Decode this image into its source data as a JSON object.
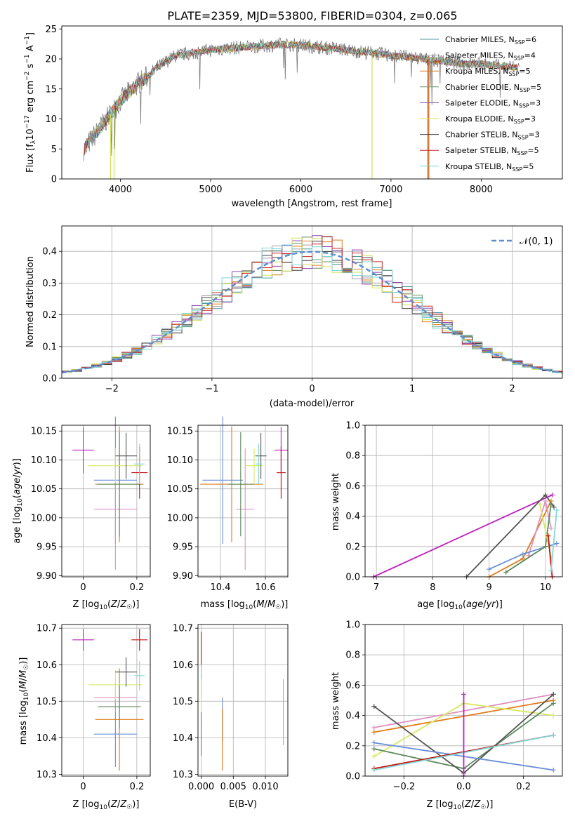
{
  "figure": {
    "title": "PLATE=2359, MJD=53800, FIBERID=0304, z=0.065",
    "model_names": [
      "Chabrier MILES",
      "Salpeter MILES",
      "Kroupa MILES",
      "Chabrier ELODIE",
      "Salpeter ELODIE",
      "Kroupa ELODIE",
      "Chabrier STELIB",
      "Salpeter STELIB",
      "Kroupa STELIB"
    ],
    "colors": [
      "#4e9a9a",
      "#a0a0a0",
      "#d47f1e",
      "#6b8e6b",
      "#8e44ad",
      "#d4e157",
      "#444444",
      "#c62828",
      "#7fd6d6"
    ],
    "error_colors": [
      "#6a8fd8",
      "#e090c0",
      "#e07b1a",
      "#5a8a5a",
      "#c020c0",
      "#d8e860",
      "#555555",
      "#c81010",
      "#80d8d8"
    ]
  },
  "chart_data": [
    {
      "type": "line",
      "id": "spectrum",
      "xlabel": "wavelength [Angstrom, rest frame]",
      "ylabel": "Flux [f_λ 10^-17 erg cm^-2 s^-1 A^-1]",
      "xlim": [
        3350,
        8900
      ],
      "ylim": [
        0,
        25.5
      ],
      "xticks": [
        4000,
        5000,
        6000,
        7000,
        8000
      ],
      "yticks": [
        0,
        5,
        10,
        15,
        20,
        25
      ],
      "legend_placement": "upper-right",
      "legend": [
        {
          "model": "Chabrier MILES",
          "n": "6"
        },
        {
          "model": "Salpeter MILES",
          "n": "4"
        },
        {
          "model": "Kroupa MILES",
          "n": "5"
        },
        {
          "model": "Chabrier ELODIE",
          "n": "5"
        },
        {
          "model": "Salpeter ELODIE",
          "n": "3"
        },
        {
          "model": "Kroupa ELODIE",
          "n": "3"
        },
        {
          "model": "Chabrier STELIB",
          "n": "3"
        },
        {
          "model": "Salpeter STELIB",
          "n": "5"
        },
        {
          "model": "Kroupa STELIB",
          "n": "5"
        }
      ],
      "continuum": {
        "x": [
          3600,
          3700,
          3800,
          3900,
          4000,
          4100,
          4200,
          4300,
          4400,
          4500,
          4600,
          4800,
          5000,
          5200,
          5400,
          5600,
          5800,
          6000,
          6200,
          6400,
          6600,
          6800,
          7000,
          7200,
          7400,
          7600,
          7800,
          8000,
          8200,
          8400
        ],
        "y": [
          5,
          7,
          9,
          11,
          13,
          14.5,
          16,
          17,
          18.5,
          19.5,
          20.5,
          21,
          21.5,
          21.8,
          22,
          22.2,
          22.4,
          22.3,
          22,
          21.7,
          21.3,
          21,
          20.6,
          20.3,
          19.9,
          19.6,
          19.2,
          19.2,
          18.8,
          18.6
        ]
      },
      "dropouts": [
        {
          "x": 3890,
          "color_index": 5
        },
        {
          "x": 3930,
          "color_index": 5
        },
        {
          "x": 6790,
          "color_index": 5
        },
        {
          "x": 7410,
          "color_index": 7
        },
        {
          "x": 7420,
          "color_index": 2
        }
      ]
    },
    {
      "type": "step",
      "id": "residual-histograms",
      "xlabel": "(data-model)/error",
      "ylabel": "Normed distribution",
      "xlim": [
        -2.5,
        2.5
      ],
      "ylim": [
        0,
        0.48
      ],
      "xticks": [
        -2,
        -1,
        0,
        1,
        2
      ],
      "yticks": [
        0.0,
        0.1,
        0.2,
        0.3,
        0.4
      ],
      "bin_width": 0.1,
      "reference_curve": "N(0,1)",
      "legend_placement": "upper-right",
      "legend_label": "𝒩(0, 1)",
      "reference_color": "#5b8fd6"
    },
    {
      "type": "errorbar",
      "id": "age-vs-Z",
      "xlabel": "Z [log10(Z/Z☉)]",
      "ylabel": "age  [log10(age/yr)]",
      "xlim": [
        -0.08,
        0.25
      ],
      "ylim": [
        9.898,
        10.16
      ],
      "xticks": [
        0.0,
        0.2
      ],
      "yticks": [
        9.9,
        9.95,
        10.0,
        10.05,
        10.1,
        10.15
      ],
      "points": [
        {
          "x": 0.12,
          "y": 10.065,
          "ex": 0.08,
          "ey": 0.11,
          "c": 0
        },
        {
          "x": 0.12,
          "y": 10.015,
          "ex": 0.08,
          "ey": 0.105,
          "c": 1
        },
        {
          "x": 0.135,
          "y": 10.058,
          "ex": 0.09,
          "ey": 0.1,
          "c": 2
        },
        {
          "x": 0.135,
          "y": 10.058,
          "ex": 0.08,
          "ey": 0.09,
          "c": 3
        },
        {
          "x": 0.0,
          "y": 10.117,
          "ex": 0.04,
          "ey": 0.04,
          "c": 4
        },
        {
          "x": 0.12,
          "y": 10.09,
          "ex": 0.1,
          "ey": 0.03,
          "c": 5
        },
        {
          "x": 0.16,
          "y": 10.107,
          "ex": 0.04,
          "ey": 0.04,
          "c": 6
        },
        {
          "x": 0.21,
          "y": 10.078,
          "ex": 0.03,
          "ey": 0.045,
          "c": 7
        },
        {
          "x": 0.21,
          "y": 10.093,
          "ex": 0.02,
          "ey": 0.035,
          "c": 8
        }
      ]
    },
    {
      "type": "errorbar",
      "id": "age-vs-mass",
      "xlabel": "mass [log10(M/M☉)]",
      "ylabel": "",
      "xlim": [
        10.3,
        10.7
      ],
      "ylim": [
        9.898,
        10.16
      ],
      "xticks": [
        10.4,
        10.6
      ],
      "yticks": [
        9.9,
        9.95,
        10.0,
        10.05,
        10.1,
        10.15
      ],
      "points": [
        {
          "x": 10.41,
          "y": 10.065,
          "ex": 0.09,
          "ey": 0.11,
          "c": 0
        },
        {
          "x": 10.51,
          "y": 10.015,
          "ex": 0.04,
          "ey": 0.105,
          "c": 1
        },
        {
          "x": 10.45,
          "y": 10.058,
          "ex": 0.14,
          "ey": 0.1,
          "c": 2
        },
        {
          "x": 10.49,
          "y": 10.058,
          "ex": 0.06,
          "ey": 0.09,
          "c": 3
        },
        {
          "x": 10.67,
          "y": 10.117,
          "ex": 0.03,
          "ey": 0.04,
          "c": 4
        },
        {
          "x": 10.55,
          "y": 10.09,
          "ex": 0.04,
          "ey": 0.03,
          "c": 5
        },
        {
          "x": 10.58,
          "y": 10.107,
          "ex": 0.025,
          "ey": 0.04,
          "c": 6
        },
        {
          "x": 10.67,
          "y": 10.078,
          "ex": 0.02,
          "ey": 0.045,
          "c": 7
        },
        {
          "x": 10.57,
          "y": 10.093,
          "ex": 0.015,
          "ey": 0.035,
          "c": 8
        }
      ]
    },
    {
      "type": "line",
      "id": "massweight-vs-age",
      "xlabel": "age  [log10(age/yr)]",
      "ylabel": "mass weight",
      "xlim": [
        6.8,
        10.3
      ],
      "ylim": [
        0,
        1
      ],
      "xticks": [
        7,
        8,
        9,
        10
      ],
      "yticks": [
        0.0,
        0.2,
        0.4,
        0.6,
        0.8,
        1.0
      ],
      "series": [
        {
          "c": 4,
          "x": [
            6.95,
            10.12
          ],
          "y": [
            0.0,
            0.54
          ]
        },
        {
          "c": 6,
          "x": [
            8.6,
            10.0,
            10.15
          ],
          "y": [
            0.0,
            0.54,
            0.46
          ]
        },
        {
          "c": 2,
          "x": [
            9.0,
            9.6,
            10.1
          ],
          "y": [
            0.0,
            0.12,
            0.5
          ]
        },
        {
          "c": 1,
          "x": [
            9.7,
            10.0,
            10.1
          ],
          "y": [
            0.14,
            0.5,
            0.32
          ]
        },
        {
          "c": 0,
          "x": [
            9.0,
            9.6,
            10.2
          ],
          "y": [
            0.05,
            0.15,
            0.22
          ]
        },
        {
          "c": 3,
          "x": [
            9.3,
            10.0,
            10.1
          ],
          "y": [
            0.03,
            0.2,
            0.48
          ]
        },
        {
          "c": 5,
          "x": [
            9.9,
            10.1
          ],
          "y": [
            0.48,
            0.13
          ]
        },
        {
          "c": 7,
          "x": [
            10.05,
            10.12
          ],
          "y": [
            0.27,
            0.0
          ]
        },
        {
          "c": 8,
          "x": [
            10.1,
            10.2
          ],
          "y": [
            0.04,
            0.44
          ]
        }
      ]
    },
    {
      "type": "errorbar",
      "id": "mass-vs-Z",
      "xlabel": "Z [log10(Z/Z☉)]",
      "ylabel": "mass [log10(M/M☉)]",
      "xlim": [
        -0.08,
        0.25
      ],
      "ylim": [
        10.295,
        10.71
      ],
      "xticks": [
        0.0,
        0.2
      ],
      "yticks": [
        10.3,
        10.4,
        10.5,
        10.6,
        10.7
      ],
      "points": [
        {
          "x": 0.12,
          "y": 10.41,
          "ex": 0.08,
          "ey": 0.09,
          "c": 0
        },
        {
          "x": 0.12,
          "y": 10.51,
          "ex": 0.08,
          "ey": 0.04,
          "c": 1
        },
        {
          "x": 0.135,
          "y": 10.45,
          "ex": 0.09,
          "ey": 0.14,
          "c": 2
        },
        {
          "x": 0.135,
          "y": 10.485,
          "ex": 0.08,
          "ey": 0.06,
          "c": 3
        },
        {
          "x": 0.0,
          "y": 10.668,
          "ex": 0.04,
          "ey": 0.03,
          "c": 4
        },
        {
          "x": 0.12,
          "y": 10.545,
          "ex": 0.1,
          "ey": 0.04,
          "c": 5
        },
        {
          "x": 0.16,
          "y": 10.58,
          "ex": 0.04,
          "ey": 0.04,
          "c": 6
        },
        {
          "x": 0.21,
          "y": 10.668,
          "ex": 0.03,
          "ey": 0.03,
          "c": 7
        },
        {
          "x": 0.21,
          "y": 10.57,
          "ex": 0.02,
          "ey": 0.04,
          "c": 8
        }
      ]
    },
    {
      "type": "errorbar",
      "id": "mass-vs-EBV",
      "xlabel": "E(B-V)",
      "ylabel": "",
      "xlim": [
        -0.0005,
        0.0135
      ],
      "ylim": [
        10.295,
        10.71
      ],
      "xticks": [
        0.0,
        0.005,
        0.01
      ],
      "xtick_labels": [
        "0.000",
        "0.005",
        "0.010"
      ],
      "yticks": [
        10.3,
        10.4,
        10.5,
        10.6,
        10.7
      ],
      "points": [
        {
          "x": 0.0,
          "y": 10.6,
          "ex": 0,
          "ey": 0.09,
          "c": 7
        },
        {
          "x": 0.0,
          "y": 10.52,
          "ex": 0,
          "ey": 0.08,
          "c": 8
        },
        {
          "x": 0.0,
          "y": 10.5,
          "ex": 0,
          "ey": 0.06,
          "c": 5
        },
        {
          "x": 0.0,
          "y": 10.41,
          "ex": 0,
          "ey": 0.06,
          "c": 3
        },
        {
          "x": 0.0033,
          "y": 10.45,
          "ex": 0,
          "ey": 0.06,
          "c": 0
        },
        {
          "x": 0.0033,
          "y": 10.395,
          "ex": 0,
          "ey": 0.085,
          "c": 2
        },
        {
          "x": 0.0128,
          "y": 10.47,
          "ex": 0,
          "ey": 0.09,
          "c": 1
        }
      ]
    },
    {
      "type": "line",
      "id": "massweight-vs-Z",
      "xlabel": "Z [log10(Z/Z☉)]",
      "ylabel": "mass weight",
      "xlim": [
        -0.33,
        0.33
      ],
      "ylim": [
        0,
        1
      ],
      "xticks": [
        -0.2,
        0.0,
        0.2
      ],
      "xtick_labels": [
        "−0.2",
        "0.0",
        "0.2"
      ],
      "yticks": [
        0.0,
        0.2,
        0.4,
        0.6,
        0.8,
        1.0
      ],
      "series": [
        {
          "c": 1,
          "x": [
            -0.3,
            0.3
          ],
          "y": [
            0.32,
            0.54
          ]
        },
        {
          "c": 2,
          "x": [
            -0.3,
            0.3
          ],
          "y": [
            0.29,
            0.5
          ]
        },
        {
          "c": 5,
          "x": [
            -0.3,
            0.0,
            0.3
          ],
          "y": [
            0.13,
            0.48,
            0.4
          ]
        },
        {
          "c": 3,
          "x": [
            -0.3,
            0.0,
            0.3
          ],
          "y": [
            0.18,
            0.05,
            0.48
          ]
        },
        {
          "c": 6,
          "x": [
            -0.3,
            0.0,
            0.3
          ],
          "y": [
            0.46,
            0.02,
            0.54
          ]
        },
        {
          "c": 0,
          "x": [
            -0.3,
            0.3
          ],
          "y": [
            0.22,
            0.04
          ]
        },
        {
          "c": 7,
          "x": [
            -0.3,
            0.3
          ],
          "y": [
            0.05,
            0.27
          ]
        },
        {
          "c": 8,
          "x": [
            -0.3,
            0.3
          ],
          "y": [
            0.04,
            0.27
          ]
        },
        {
          "c": 4,
          "x": [
            0.0,
            0.0
          ],
          "y": [
            0.0,
            0.54
          ]
        }
      ]
    }
  ]
}
